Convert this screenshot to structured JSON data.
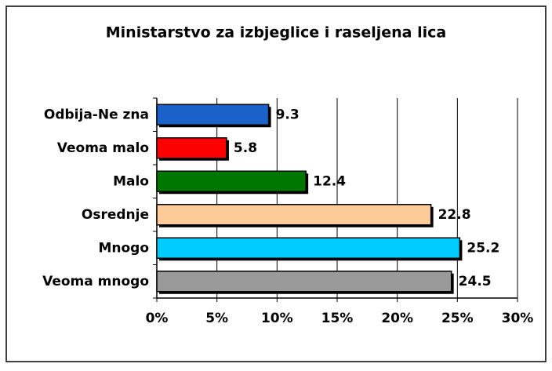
{
  "chart_data": {
    "type": "bar",
    "orientation": "horizontal",
    "title": "Ministarstvo za izbjeglice i raseljena lica",
    "categories": [
      "Odbija-Ne zna",
      "Veoma malo",
      "Malo",
      "Osrednje",
      "Mnogo",
      "Veoma mnogo"
    ],
    "values": [
      9.3,
      5.8,
      12.4,
      22.8,
      25.2,
      24.5
    ],
    "colors": [
      "#1a62c9",
      "#ff0000",
      "#007800",
      "#ffcc99",
      "#00ccff",
      "#999999"
    ],
    "xlim": [
      0,
      30
    ],
    "xticks": [
      {
        "value": 0,
        "label": "0%"
      },
      {
        "value": 5,
        "label": "5%"
      },
      {
        "value": 10,
        "label": "10%"
      },
      {
        "value": 15,
        "label": "15%"
      },
      {
        "value": 20,
        "label": "20%"
      },
      {
        "value": 25,
        "label": "25%"
      },
      {
        "value": 30,
        "label": "30%"
      }
    ],
    "grid": true
  }
}
